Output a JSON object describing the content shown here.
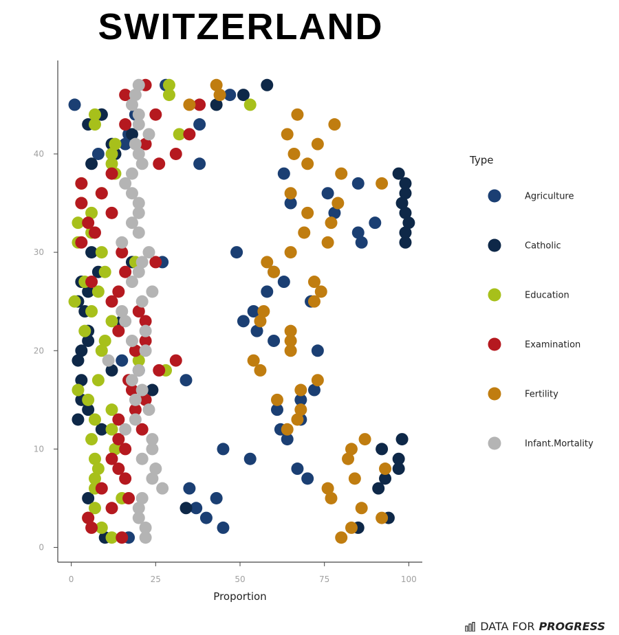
{
  "chart_data": {
    "type": "scatter",
    "title": "SWITZERLAND",
    "xlabel": "Proportion",
    "ylabel": "",
    "xlim": [
      -4,
      104
    ],
    "ylim": [
      -1.5,
      49.5
    ],
    "xticks": [
      0,
      25,
      50,
      75,
      100
    ],
    "yticks": [
      0,
      10,
      20,
      30,
      40
    ],
    "legend_title": "Type",
    "legend_position": "right",
    "series": [
      {
        "name": "Agriculture",
        "color": "#1b3f73",
        "points": [
          [
            1,
            45
          ],
          [
            9,
            44
          ],
          [
            19,
            44
          ],
          [
            38,
            43
          ],
          [
            17,
            42
          ],
          [
            16,
            41
          ],
          [
            13,
            40
          ],
          [
            8,
            40
          ],
          [
            38,
            39
          ],
          [
            63,
            38
          ],
          [
            85,
            37
          ],
          [
            76,
            36
          ],
          [
            65,
            35
          ],
          [
            78,
            34
          ],
          [
            90,
            33
          ],
          [
            49,
            30
          ],
          [
            27,
            29
          ],
          [
            60,
            28
          ],
          [
            63,
            27
          ],
          [
            71,
            25
          ],
          [
            58,
            26
          ],
          [
            54,
            24
          ],
          [
            51,
            23
          ],
          [
            55,
            22
          ],
          [
            60,
            21
          ],
          [
            73,
            20
          ],
          [
            15,
            19
          ],
          [
            20,
            18
          ],
          [
            34,
            17
          ],
          [
            72,
            16
          ],
          [
            68,
            15
          ],
          [
            61,
            14
          ],
          [
            68,
            13
          ],
          [
            62,
            12
          ],
          [
            64,
            11
          ],
          [
            45,
            10
          ],
          [
            53,
            9
          ],
          [
            67,
            8
          ],
          [
            70,
            7
          ],
          [
            35,
            6
          ],
          [
            43,
            5
          ],
          [
            37,
            4
          ],
          [
            40,
            3
          ],
          [
            45,
            2
          ],
          [
            17,
            1
          ],
          [
            47,
            46
          ],
          [
            28,
            47
          ],
          [
            85,
            32
          ],
          [
            86,
            31
          ]
        ]
      },
      {
        "name": "Catholic",
        "color": "#0e2848",
        "points": [
          [
            5,
            43
          ],
          [
            9,
            44
          ],
          [
            12,
            41
          ],
          [
            13,
            40
          ],
          [
            6,
            39
          ],
          [
            43,
            45
          ],
          [
            51,
            46
          ],
          [
            58,
            47
          ],
          [
            18,
            42
          ],
          [
            97,
            38
          ],
          [
            99,
            37
          ],
          [
            99,
            36
          ],
          [
            98,
            35
          ],
          [
            99,
            34
          ],
          [
            100,
            33
          ],
          [
            99,
            32
          ],
          [
            99,
            31
          ],
          [
            6,
            30
          ],
          [
            18,
            29
          ],
          [
            8,
            28
          ],
          [
            3,
            27
          ],
          [
            5,
            26
          ],
          [
            2,
            25
          ],
          [
            4,
            24
          ],
          [
            15,
            23
          ],
          [
            5,
            22
          ],
          [
            5,
            21
          ],
          [
            3,
            20
          ],
          [
            2,
            19
          ],
          [
            12,
            18
          ],
          [
            3,
            17
          ],
          [
            24,
            16
          ],
          [
            3,
            15
          ],
          [
            5,
            14
          ],
          [
            2,
            13
          ],
          [
            9,
            12
          ],
          [
            98,
            11
          ],
          [
            92,
            10
          ],
          [
            97,
            9
          ],
          [
            97,
            8
          ],
          [
            93,
            7
          ],
          [
            91,
            6
          ],
          [
            5,
            5
          ],
          [
            34,
            4
          ],
          [
            94,
            3
          ],
          [
            85,
            2
          ],
          [
            10,
            1
          ]
        ]
      },
      {
        "name": "Education",
        "color": "#a7c01b",
        "points": [
          [
            29,
            47
          ],
          [
            29,
            46
          ],
          [
            53,
            45
          ],
          [
            7,
            44
          ],
          [
            7,
            43
          ],
          [
            32,
            42
          ],
          [
            13,
            41
          ],
          [
            12,
            40
          ],
          [
            12,
            39
          ],
          [
            13,
            38
          ],
          [
            3,
            37
          ],
          [
            9,
            36
          ],
          [
            3,
            35
          ],
          [
            6,
            34
          ],
          [
            2,
            33
          ],
          [
            6,
            32
          ],
          [
            2,
            31
          ],
          [
            9,
            30
          ],
          [
            19,
            29
          ],
          [
            10,
            28
          ],
          [
            4,
            27
          ],
          [
            8,
            26
          ],
          [
            1,
            25
          ],
          [
            6,
            24
          ],
          [
            12,
            23
          ],
          [
            4,
            22
          ],
          [
            10,
            21
          ],
          [
            9,
            20
          ],
          [
            20,
            19
          ],
          [
            28,
            18
          ],
          [
            8,
            17
          ],
          [
            2,
            16
          ],
          [
            5,
            15
          ],
          [
            12,
            14
          ],
          [
            7,
            13
          ],
          [
            12,
            12
          ],
          [
            6,
            11
          ],
          [
            13,
            10
          ],
          [
            7,
            9
          ],
          [
            8,
            8
          ],
          [
            7,
            7
          ],
          [
            7,
            6
          ],
          [
            15,
            5
          ],
          [
            7,
            4
          ],
          [
            5,
            3
          ],
          [
            9,
            2
          ],
          [
            12,
            1
          ]
        ]
      },
      {
        "name": "Examination",
        "color": "#b5191f",
        "points": [
          [
            22,
            47
          ],
          [
            16,
            46
          ],
          [
            38,
            45
          ],
          [
            25,
            44
          ],
          [
            16,
            43
          ],
          [
            35,
            42
          ],
          [
            22,
            41
          ],
          [
            31,
            40
          ],
          [
            26,
            39
          ],
          [
            12,
            38
          ],
          [
            3,
            37
          ],
          [
            9,
            36
          ],
          [
            3,
            35
          ],
          [
            12,
            34
          ],
          [
            5,
            33
          ],
          [
            7,
            32
          ],
          [
            3,
            31
          ],
          [
            15,
            30
          ],
          [
            25,
            29
          ],
          [
            16,
            28
          ],
          [
            6,
            27
          ],
          [
            14,
            26
          ],
          [
            12,
            25
          ],
          [
            20,
            24
          ],
          [
            22,
            23
          ],
          [
            14,
            22
          ],
          [
            22,
            21
          ],
          [
            19,
            20
          ],
          [
            31,
            19
          ],
          [
            26,
            18
          ],
          [
            17,
            17
          ],
          [
            18,
            16
          ],
          [
            22,
            15
          ],
          [
            19,
            14
          ],
          [
            14,
            13
          ],
          [
            21,
            12
          ],
          [
            14,
            11
          ],
          [
            16,
            10
          ],
          [
            12,
            9
          ],
          [
            14,
            8
          ],
          [
            16,
            7
          ],
          [
            9,
            6
          ],
          [
            17,
            5
          ],
          [
            12,
            4
          ],
          [
            5,
            3
          ],
          [
            6,
            2
          ],
          [
            15,
            1
          ]
        ]
      },
      {
        "name": "Fertility",
        "color": "#c07d10",
        "points": [
          [
            43,
            47
          ],
          [
            44,
            46
          ],
          [
            35,
            45
          ],
          [
            67,
            44
          ],
          [
            78,
            43
          ],
          [
            64,
            42
          ],
          [
            73,
            41
          ],
          [
            66,
            40
          ],
          [
            70,
            39
          ],
          [
            80,
            38
          ],
          [
            92,
            37
          ],
          [
            65,
            36
          ],
          [
            79,
            35
          ],
          [
            70,
            34
          ],
          [
            77,
            33
          ],
          [
            69,
            32
          ],
          [
            76,
            31
          ],
          [
            65,
            30
          ],
          [
            58,
            29
          ],
          [
            60,
            28
          ],
          [
            72,
            27
          ],
          [
            74,
            26
          ],
          [
            72,
            25
          ],
          [
            57,
            24
          ],
          [
            56,
            23
          ],
          [
            65,
            22
          ],
          [
            65,
            21
          ],
          [
            65,
            20
          ],
          [
            54,
            19
          ],
          [
            56,
            18
          ],
          [
            73,
            17
          ],
          [
            68,
            16
          ],
          [
            61,
            15
          ],
          [
            68,
            14
          ],
          [
            67,
            13
          ],
          [
            64,
            12
          ],
          [
            87,
            11
          ],
          [
            83,
            10
          ],
          [
            82,
            9
          ],
          [
            93,
            8
          ],
          [
            84,
            7
          ],
          [
            76,
            6
          ],
          [
            77,
            5
          ],
          [
            86,
            4
          ],
          [
            92,
            3
          ],
          [
            83,
            2
          ],
          [
            80,
            1
          ]
        ]
      },
      {
        "name": "Infant.Mortality",
        "color": "#b4b4b4",
        "points": [
          [
            20,
            47
          ],
          [
            19,
            46
          ],
          [
            18,
            45
          ],
          [
            20,
            44
          ],
          [
            20,
            43
          ],
          [
            23,
            42
          ],
          [
            19,
            41
          ],
          [
            20,
            40
          ],
          [
            21,
            39
          ],
          [
            18,
            38
          ],
          [
            16,
            37
          ],
          [
            18,
            36
          ],
          [
            20,
            35
          ],
          [
            20,
            34
          ],
          [
            18,
            33
          ],
          [
            20,
            32
          ],
          [
            15,
            31
          ],
          [
            23,
            30
          ],
          [
            21,
            29
          ],
          [
            20,
            28
          ],
          [
            18,
            27
          ],
          [
            24,
            26
          ],
          [
            21,
            25
          ],
          [
            15,
            24
          ],
          [
            16,
            23
          ],
          [
            22,
            22
          ],
          [
            18,
            21
          ],
          [
            22,
            20
          ],
          [
            11,
            19
          ],
          [
            20,
            18
          ],
          [
            18,
            17
          ],
          [
            21,
            16
          ],
          [
            19,
            15
          ],
          [
            23,
            14
          ],
          [
            19,
            13
          ],
          [
            16,
            12
          ],
          [
            24,
            11
          ],
          [
            24,
            10
          ],
          [
            21,
            9
          ],
          [
            25,
            8
          ],
          [
            24,
            7
          ],
          [
            27,
            6
          ],
          [
            21,
            5
          ],
          [
            20,
            4
          ],
          [
            20,
            3
          ],
          [
            22,
            2
          ],
          [
            22,
            1
          ]
        ]
      }
    ]
  },
  "brand": {
    "part1": "DATA FOR ",
    "part2": "PROGRESS"
  }
}
